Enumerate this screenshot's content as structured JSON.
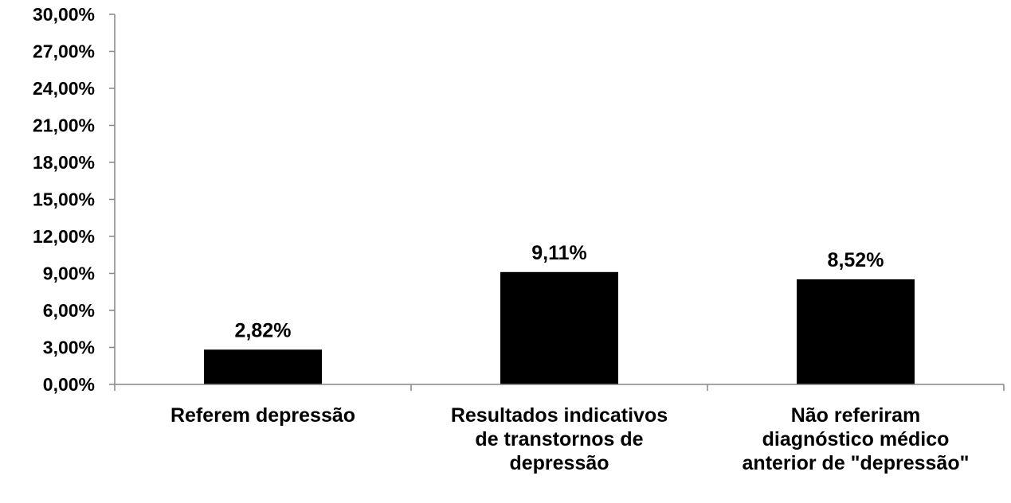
{
  "chart_data": {
    "type": "bar",
    "categories": [
      [
        "Referem depressão"
      ],
      [
        "Resultados indicativos",
        "de transtornos de",
        "depressão"
      ],
      [
        "Não referiram",
        "diagnóstico médico",
        "anterior de \"depressão\""
      ]
    ],
    "values": [
      2.82,
      9.11,
      8.52
    ],
    "data_labels": [
      "2,82%",
      "9,11%",
      "8,52%"
    ],
    "yticks": [
      0,
      3,
      6,
      9,
      12,
      15,
      18,
      21,
      24,
      27,
      30
    ],
    "ytick_labels": [
      "0,00%",
      "3,00%",
      "6,00%",
      "9,00%",
      "12,00%",
      "15,00%",
      "18,00%",
      "21,00%",
      "24,00%",
      "27,00%",
      "30,00%"
    ],
    "ylim": [
      0,
      30
    ],
    "grid": false,
    "bar_color": "#000000",
    "title": "",
    "xlabel": "",
    "ylabel": ""
  }
}
